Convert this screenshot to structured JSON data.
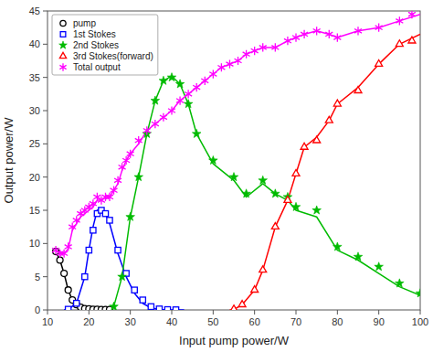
{
  "chart_data": {
    "type": "scatter",
    "x_label": "Input pump power/W",
    "y_label": "Output power/W",
    "xlim": [
      10,
      100
    ],
    "ylim": [
      0,
      45
    ],
    "xticks": [
      10,
      20,
      30,
      40,
      50,
      60,
      70,
      80,
      90,
      100
    ],
    "yticks": [
      0,
      5,
      10,
      15,
      20,
      25,
      30,
      35,
      40,
      45
    ],
    "grid": false,
    "legend": "upper left",
    "series": [
      {
        "name": "pump",
        "color": "#000000",
        "marker": "circle",
        "x": [
          12,
          13,
          14,
          15,
          16,
          17,
          18,
          19,
          20,
          21,
          22,
          23,
          24,
          25
        ],
        "values": [
          8.8,
          7.5,
          5.5,
          3.0,
          1.5,
          0.8,
          0.4,
          0.2,
          0.15,
          0.1,
          0.1,
          0.05,
          0.05,
          0.05
        ],
        "line": {
          "x": [
            11.5,
            12,
            13,
            14,
            15,
            16,
            17,
            18,
            19,
            20,
            21,
            22,
            23,
            24,
            25
          ],
          "values": [
            9.2,
            8.8,
            7.5,
            5.5,
            3.0,
            1.5,
            0.8,
            0.4,
            0.2,
            0.1,
            0.05,
            0.02,
            0.02,
            0.02,
            0.02
          ]
        }
      },
      {
        "name": "1st Stokes",
        "color": "#0000FF",
        "marker": "square",
        "x": [
          15,
          17,
          19,
          20,
          21,
          22,
          23,
          24,
          25,
          27,
          29,
          31,
          33,
          35,
          37,
          39,
          41
        ],
        "values": [
          0.1,
          1.0,
          5.0,
          9.0,
          12.0,
          14.5,
          15.0,
          14.5,
          13.5,
          9.0,
          5.5,
          3.0,
          1.5,
          0.5,
          0.15,
          0.05,
          0.02
        ],
        "line": {
          "x": [
            14,
            15,
            17,
            19,
            20,
            21,
            22,
            23,
            24,
            25,
            27,
            29,
            31,
            33,
            35,
            37,
            39,
            41,
            43
          ],
          "values": [
            0,
            0.1,
            1.0,
            5.0,
            9.0,
            12.5,
            15.0,
            15.2,
            14.5,
            13.0,
            8.5,
            5.0,
            2.5,
            1.0,
            0.3,
            0.08,
            0.02,
            0.0,
            0.0
          ]
        }
      },
      {
        "name": "2nd Stokes",
        "color": "#00BB00",
        "marker": "star",
        "x": [
          26,
          28,
          30,
          32,
          34,
          36,
          38,
          40,
          42,
          44,
          46,
          50,
          55,
          58,
          62,
          65,
          68,
          70,
          75,
          80,
          85,
          90,
          95,
          100
        ],
        "values": [
          0.5,
          5.0,
          14.0,
          20.0,
          26.5,
          31.5,
          34.5,
          35.0,
          34.0,
          31.0,
          26.5,
          22.5,
          20.0,
          17.5,
          19.5,
          17.5,
          17.0,
          15.5,
          15.0,
          9.5,
          8.0,
          6.5,
          4.0,
          2.5
        ],
        "line": {
          "x": [
            25,
            26,
            28,
            30,
            32,
            34,
            36,
            38,
            40,
            42,
            44,
            46,
            50,
            55,
            58,
            62,
            65,
            68,
            70,
            75,
            80,
            85,
            90,
            95,
            100
          ],
          "values": [
            0,
            0.5,
            5.0,
            14.0,
            20.0,
            26.5,
            31.5,
            34.5,
            35.2,
            34.0,
            31.0,
            26.5,
            22.0,
            19.5,
            17.0,
            19.0,
            17.5,
            16.5,
            15.0,
            14.0,
            9.0,
            7.5,
            5.5,
            3.5,
            2.2
          ]
        }
      },
      {
        "name": "3rd Stokes(forward)",
        "color": "#FF0000",
        "marker": "triangle",
        "x": [
          55,
          57,
          60,
          62,
          65,
          68,
          70,
          72,
          75,
          78,
          80,
          85,
          90,
          95,
          98
        ],
        "values": [
          0.1,
          0.8,
          3.0,
          6.0,
          12.5,
          16.5,
          20.5,
          24.5,
          25.5,
          28.5,
          31.0,
          33.0,
          37.0,
          40.0,
          40.5
        ],
        "line": {
          "x": [
            54,
            55,
            57,
            60,
            62,
            65,
            68,
            70,
            72,
            75,
            78,
            80,
            85,
            90,
            95,
            100
          ],
          "values": [
            0,
            0.05,
            0.8,
            3.0,
            6.0,
            12.5,
            16.5,
            20.5,
            24.5,
            26.0,
            28.5,
            31.0,
            33.5,
            37.0,
            40.0,
            41.5
          ]
        }
      },
      {
        "name": "Total output",
        "color": "#FF00FF",
        "marker": "asterisk",
        "x": [
          12,
          13,
          14,
          15,
          16,
          17,
          18,
          19,
          20,
          21,
          22,
          23,
          24,
          25,
          26,
          27,
          28,
          29,
          30,
          32,
          34,
          36,
          38,
          40,
          42,
          44,
          46,
          48,
          50,
          52,
          54,
          56,
          58,
          60,
          62,
          65,
          68,
          70,
          72,
          75,
          78,
          80,
          85,
          90,
          95,
          98
        ],
        "values": [
          9.0,
          8.5,
          8.5,
          9.5,
          12.5,
          13.5,
          14.5,
          15.0,
          15.5,
          16.0,
          17.0,
          16.5,
          17.0,
          17.0,
          18.0,
          19.5,
          21.5,
          22.5,
          23.5,
          25.5,
          27.0,
          28.0,
          29.0,
          30.0,
          31.5,
          32.5,
          33.5,
          34.5,
          35.5,
          36.5,
          37.0,
          37.5,
          38.5,
          39.0,
          39.5,
          39.5,
          40.5,
          41.0,
          41.5,
          42.0,
          41.5,
          41.0,
          42.0,
          42.5,
          43.5,
          44.5
        ],
        "line": {
          "x": [
            12,
            13,
            14,
            15,
            16,
            17,
            18,
            19,
            20,
            21,
            22,
            23,
            24,
            25,
            26,
            27,
            28,
            29,
            30,
            32,
            34,
            36,
            38,
            40,
            42,
            44,
            46,
            48,
            50,
            52,
            54,
            56,
            58,
            60,
            62,
            65,
            68,
            70,
            72,
            75,
            78,
            80,
            85,
            90,
            95,
            100
          ],
          "values": [
            9.2,
            8.5,
            8.5,
            9.2,
            12.0,
            13.0,
            14.0,
            14.5,
            15.0,
            15.5,
            16.5,
            16.5,
            17.0,
            17.0,
            18.0,
            19.0,
            21.0,
            22.5,
            23.5,
            25.0,
            27.0,
            28.0,
            29.0,
            30.0,
            31.5,
            32.5,
            33.5,
            34.5,
            35.5,
            36.5,
            37.0,
            37.5,
            38.5,
            39.0,
            39.5,
            39.5,
            40.5,
            41.0,
            41.5,
            42.0,
            41.5,
            41.0,
            42.0,
            42.5,
            43.5,
            44.5
          ]
        }
      }
    ]
  }
}
